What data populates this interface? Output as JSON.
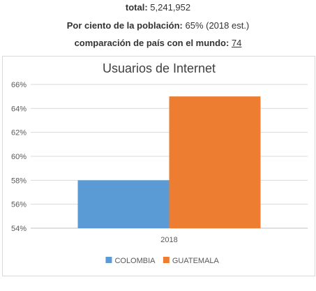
{
  "stats": {
    "total_label": "total:",
    "total_value": "5,241,952",
    "percent_label": "Por ciento de la población:",
    "percent_value": "65% (2018 est.)",
    "rank_label": "comparación de país con el mundo:",
    "rank_value": "74"
  },
  "chart_data": {
    "type": "bar",
    "title": "Usuarios de Internet",
    "xlabel": "",
    "ylabel": "",
    "categories": [
      "2018"
    ],
    "series": [
      {
        "name": "COLOMBIA",
        "values": [
          58
        ],
        "color": "#5b9bd5"
      },
      {
        "name": "GUATEMALA",
        "values": [
          65
        ],
        "color": "#ed7d31"
      }
    ],
    "ylim": [
      54,
      66
    ],
    "ytick_step": 2,
    "ytick_format": "percent",
    "grid": true,
    "legend_position": "bottom"
  }
}
